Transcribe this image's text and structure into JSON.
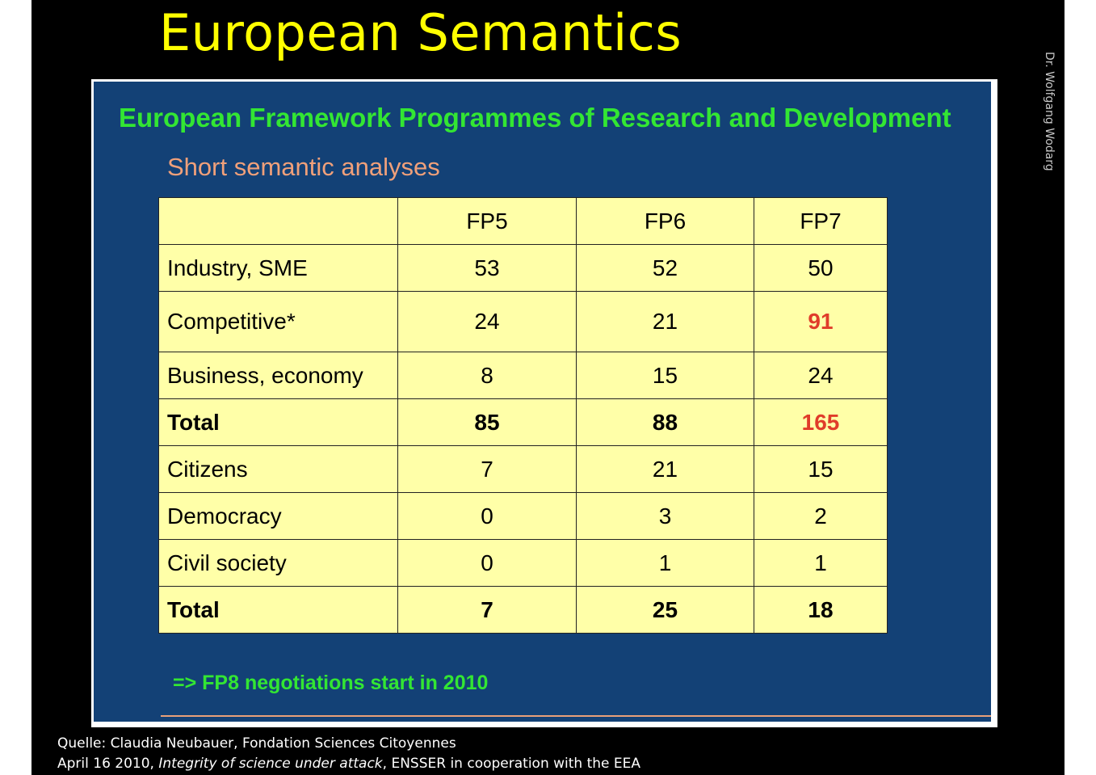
{
  "slide_title": "European Semantics",
  "author": "Dr. Wolfgang Wodarg",
  "panel": {
    "title": "European Framework Programmes of Research and Development",
    "subtitle": "Short semantic analyses",
    "note": "=> FP8 negotiations start in 2010"
  },
  "table": {
    "headers": [
      "",
      "FP5",
      "FP6",
      "FP7"
    ],
    "rows": [
      {
        "label": "Industry, SME",
        "values": [
          "53",
          "52",
          "50"
        ]
      },
      {
        "label": "Competitive*",
        "values": [
          "24",
          "21",
          "91"
        ]
      },
      {
        "label": "Business, economy",
        "values": [
          "8",
          "15",
          "24"
        ]
      },
      {
        "label": "Total",
        "values": [
          "85",
          "88",
          "165"
        ]
      },
      {
        "label": "Citizens",
        "values": [
          "7",
          "21",
          "15"
        ]
      },
      {
        "label": "Democracy",
        "values": [
          "0",
          "3",
          "2"
        ]
      },
      {
        "label": "Civil society",
        "values": [
          "0",
          "1",
          "1"
        ]
      },
      {
        "label": "Total",
        "values": [
          "7",
          "25",
          "18"
        ]
      }
    ],
    "highlight_color": "#e03c2a"
  },
  "source": {
    "line1": "Quelle: Claudia Neubauer, Fondation Sciences Citoyennes",
    "line2_prefix": "April 16 2010, ",
    "line2_italic": "Integrity of science under attack",
    "line2_suffix": ", ENSSER in cooperation with the EEA"
  },
  "colors": {
    "title": "#ffff00",
    "panel_bg": "#134176",
    "panel_title": "#33e633",
    "subtitle": "#f0a07a",
    "table_bg": "#ffffa8"
  }
}
